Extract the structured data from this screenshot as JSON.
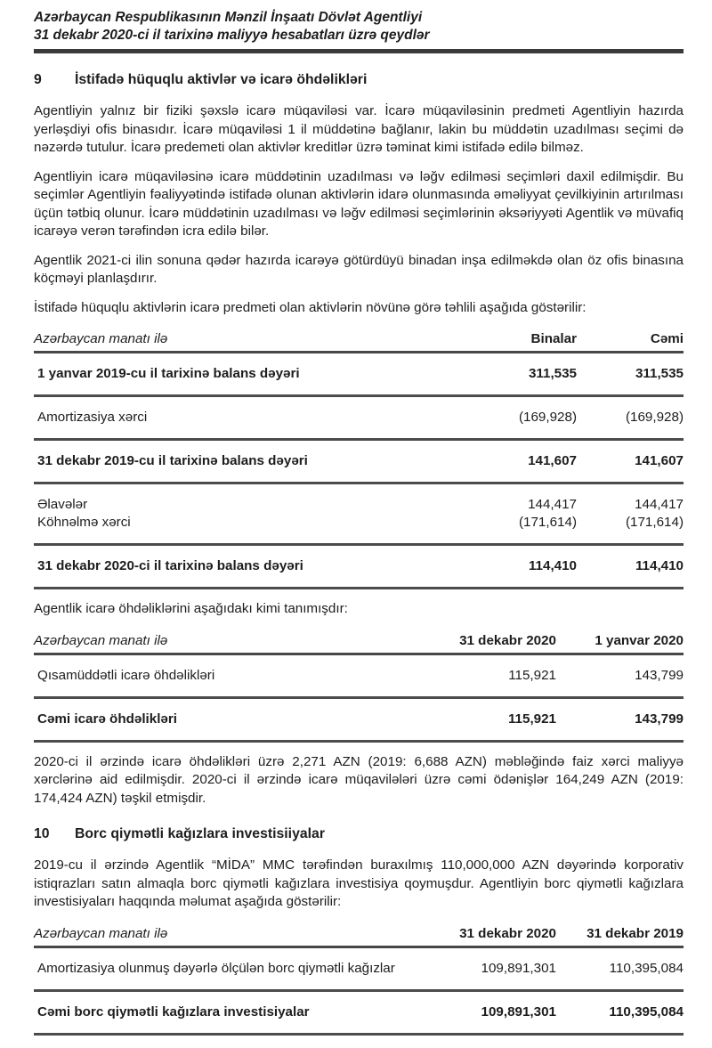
{
  "colors": {
    "ink": "#1d1d1d",
    "rule_heavy": "#3a3a3a",
    "rule_row": "#4c4c4c"
  },
  "header": {
    "line1": "Azərbaycan Respublikasının Mənzil İnşaatı Dövlət Agentliyi",
    "line2": "31 dekabr 2020-ci il tarixinə maliyyə hesabatları üzrə qeydlər"
  },
  "s9": {
    "number": "9",
    "title": "İstifadə hüquqlu aktivlər və icarə öhdəlikləri",
    "paragraphs": [
      "Agentliyin yalnız bir fiziki şəxslə icarə müqaviləsi var. İcarə müqaviləsinin predmeti Agentliyin hazırda yerləşdiyi ofis binasıdır. İcarə müqaviləsi 1 il müddətinə bağlanır, lakin bu müddətin uzadılması seçimi də nəzərdə tutulur. İcarə predemeti olan aktivlər kreditlər üzrə təminat kimi istifadə edilə bilməz.",
      "Agentliyin icarə müqaviləsinə icarə müddətinin uzadılması və ləğv edilməsi seçimləri daxil edilmişdir. Bu seçimlər Agentliyin fəaliyyətində istifadə olunan aktivlərin idarə olunmasında əməliyyat çevilkiyinin artırılması üçün tətbiq olunur. İcarə müddətinin uzadılması və ləğv edilməsi seçimlərinin əksəriyyəti Agentlik və müvafiq icarəyə verən tərəfindən icra edilə bilər.",
      "Agentlik 2021-ci ilin sonuna qədər hazırda icarəyə götürdüyü binadan inşa edilməkdə olan öz ofis binasına köçməyi planlaşdırır.",
      "İstifadə hüquqlu aktivlərin icarə predmeti olan aktivlərin növünə görə təhlili aşağıda göstərilir:"
    ],
    "assets_table": {
      "currency_label": "Azərbaycan manatı ilə",
      "columns": [
        "Binalar",
        "Cəmi"
      ],
      "rows": [
        {
          "label": "1 yanvar 2019-cu il tarixinə balans dəyəri",
          "v1": "311,535",
          "v2": "311,535"
        },
        {
          "label": "Amortizasiya xərci",
          "v1": "(169,928)",
          "v2": "(169,928)"
        },
        {
          "label": "31 dekabr 2019-cu il tarixinə balans dəyəri",
          "v1": "141,607",
          "v2": "141,607"
        },
        {
          "label": "Əlavələr",
          "v1": "144,417",
          "v2": "144,417"
        },
        {
          "label": "Köhnəlmə xərci",
          "v1": "(171,614)",
          "v2": "(171,614)"
        },
        {
          "label": "31 dekabr 2020-ci il tarixinə balans dəyəri",
          "v1": "114,410",
          "v2": "114,410"
        }
      ]
    },
    "liabilities_intro": "Agentlik icarə öhdəliklərini aşağıdakı kimi tanımışdır:",
    "liabilities_table": {
      "currency_label": "Azərbaycan manatı ilə",
      "columns": [
        "31 dekabr 2020",
        "1 yanvar 2020"
      ],
      "rows": [
        {
          "label": "Qısamüddətli icarə öhdəlikləri",
          "v1": "115,921",
          "v2": "143,799"
        },
        {
          "label": "Cəmi icarə öhdəlikləri",
          "v1": "115,921",
          "v2": "143,799"
        }
      ]
    },
    "closing_paragraph": "2020-ci il ərzində icarə öhdəlikləri üzrə 2,271 AZN (2019: 6,688 AZN) məbləğində faiz xərci maliyyə xərclərinə aid edilmişdir. 2020-ci il ərzində icarə müqavilələri üzrə cəmi ödənişlər 164,249 AZN (2019: 174,424 AZN) təşkil etmişdir."
  },
  "s10": {
    "number": "10",
    "title": "Borc qiymətli kağızlara investisiiyalar",
    "paragraph": "2019-cu il ərzində Agentlik “MİDA” MMC tərəfindən buraxılmış 110,000,000 AZN dəyərində korporativ istiqrazları satın almaqla borc qiymətli kağızlara investisiya qoymuşdur. Agentliyin borc qiymətli kağızlara investisiyaları haqqında məlumat aşağıda göstərilir:",
    "investments_table": {
      "currency_label": "Azərbaycan manatı ilə",
      "columns": [
        "31 dekabr 2020",
        "31 dekabr 2019"
      ],
      "rows": [
        {
          "label": "Amortizasiya olunmuş dəyərlə ölçülən borc qiymətli kağızlar",
          "v1": "109,891,301",
          "v2": "110,395,084"
        },
        {
          "label": "Cəmi borc qiymətli kağızlara investisiyalar",
          "v1": "109,891,301",
          "v2": "110,395,084"
        }
      ]
    }
  }
}
